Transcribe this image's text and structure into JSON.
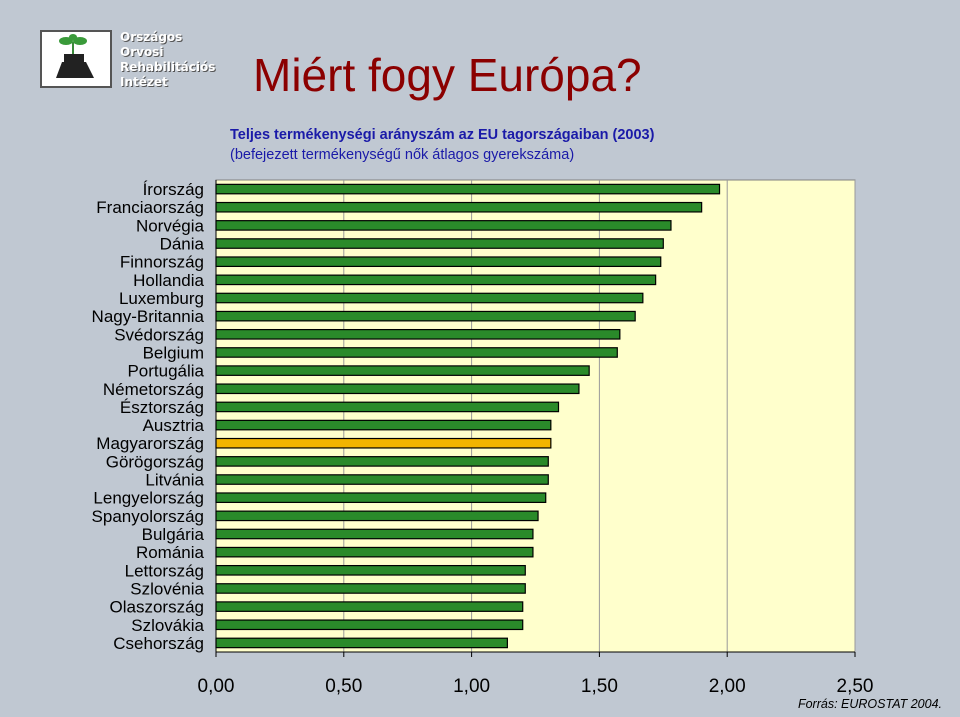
{
  "logo": {
    "lines": [
      "Országos",
      "Orvosi",
      "Rehabilitációs",
      "Intézet"
    ],
    "icon": "tree-stump-sprout-icon"
  },
  "title": "Miért fogy Európa?",
  "subtitle_line1": "Teljes termékenységi arányszám az EU tagországaiban (2003)",
  "subtitle_line2": "(befejezett termékenységű nők átlagos gyerekszáma)",
  "source": "Forrás: EUROSTAT 2004.",
  "colors": {
    "bar_fill": "#2a8a2a",
    "bar_highlight": "#f2b400",
    "bar_stroke": "#000000",
    "plot_bg": "#ffffcc",
    "background": "#c0c8d2"
  },
  "chart_data": {
    "type": "bar",
    "orientation": "horizontal",
    "categories": [
      "Írország",
      "Franciaország",
      "Norvégia",
      "Dánia",
      "Finnország",
      "Hollandia",
      "Luxemburg",
      "Nagy-Britannia",
      "Svédország",
      "Belgium",
      "Portugália",
      "Németország",
      "Észtország",
      "Ausztria",
      "Magyarország",
      "Görögország",
      "Litvánia",
      "Lengyelország",
      "Spanyolország",
      "Bulgária",
      "Románia",
      "Lettország",
      "Szlovénia",
      "Olaszország",
      "Szlovákia",
      "Csehország"
    ],
    "values": [
      1.97,
      1.9,
      1.78,
      1.75,
      1.74,
      1.72,
      1.67,
      1.64,
      1.58,
      1.57,
      1.46,
      1.42,
      1.34,
      1.31,
      1.31,
      1.3,
      1.3,
      1.29,
      1.26,
      1.24,
      1.24,
      1.21,
      1.21,
      1.2,
      1.2,
      1.14
    ],
    "highlight_category": "Magyarország",
    "xlim": [
      0,
      2.5
    ],
    "xticks": [
      "0,00",
      "0,50",
      "1,00",
      "1,50",
      "2,00",
      "2,50"
    ],
    "grid": "vertical",
    "legend": "none"
  }
}
